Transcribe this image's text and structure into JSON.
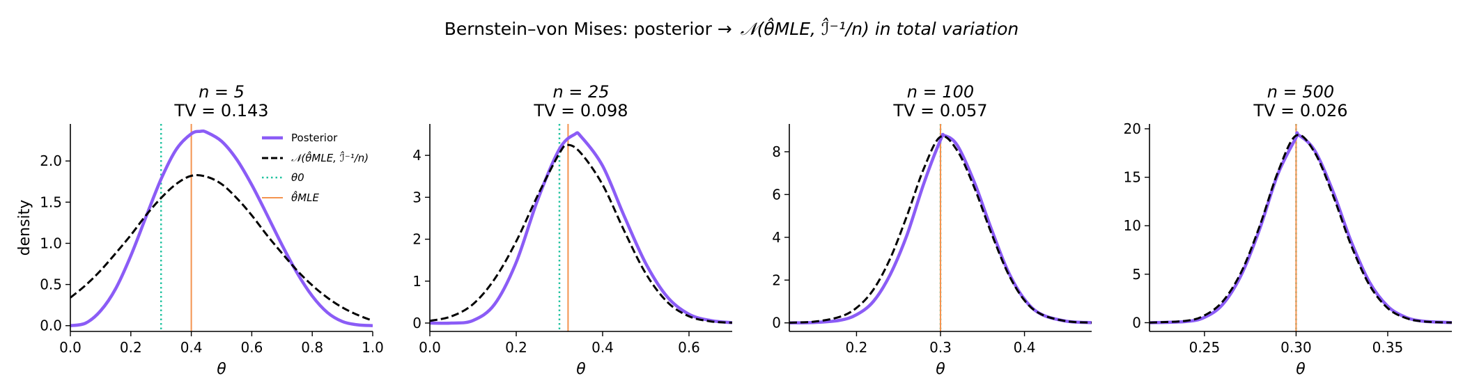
{
  "figure": {
    "suptitle_text": "Bernstein–von Mises: posterior →",
    "suptitle_math": "𝒩(θ̂MLE, ℐ̂⁻¹/n) in total variation"
  },
  "colors": {
    "posterior": "#8b5cf6",
    "normal": "#000000",
    "theta0": "#22c3a0",
    "mle": "#f4934f"
  },
  "legend": {
    "placement": "upper-right (first panel)",
    "entries": [
      "Posterior",
      "𝒩(θ̂MLE, ℐ̂⁻¹/n)",
      "θ0",
      "θ̂MLE"
    ]
  },
  "chart_data": [
    {
      "type": "line",
      "title_n": "n = 5",
      "title_tv": "TV = 0.143",
      "xlabel": "θ",
      "ylabel": "density",
      "xlim": [
        0.0,
        1.0
      ],
      "ylim": [
        -0.07,
        2.45
      ],
      "xticks": [
        0.0,
        0.2,
        0.4,
        0.6,
        0.8,
        1.0
      ],
      "xtick_labels": [
        "0.0",
        "0.2",
        "0.4",
        "0.6",
        "0.8",
        "1.0"
      ],
      "yticks": [
        0.0,
        0.5,
        1.0,
        1.5,
        2.0
      ],
      "ytick_labels": [
        "0.0",
        "0.5",
        "1.0",
        "1.5",
        "2.0"
      ],
      "theta0": 0.3,
      "theta_mle": 0.4,
      "series": [
        {
          "name": "Posterior",
          "x": [
            0.0,
            0.05,
            0.1,
            0.15,
            0.2,
            0.25,
            0.3,
            0.35,
            0.4,
            0.43,
            0.45,
            0.5,
            0.55,
            0.6,
            0.65,
            0.7,
            0.75,
            0.8,
            0.85,
            0.9,
            0.95,
            1.0
          ],
          "y": [
            0.0,
            0.03,
            0.18,
            0.45,
            0.85,
            1.32,
            1.78,
            2.14,
            2.33,
            2.36,
            2.35,
            2.24,
            2.02,
            1.71,
            1.35,
            0.98,
            0.64,
            0.36,
            0.16,
            0.05,
            0.01,
            0.0
          ]
        },
        {
          "name": "𝒩(θ̂MLE, ℐ̂⁻¹/n)",
          "x": [
            0.0,
            0.05,
            0.1,
            0.15,
            0.2,
            0.25,
            0.3,
            0.35,
            0.4,
            0.45,
            0.5,
            0.55,
            0.6,
            0.65,
            0.7,
            0.75,
            0.8,
            0.85,
            0.9,
            0.95,
            1.0
          ],
          "y": [
            0.34,
            0.49,
            0.67,
            0.88,
            1.1,
            1.34,
            1.55,
            1.72,
            1.82,
            1.81,
            1.72,
            1.55,
            1.34,
            1.1,
            0.88,
            0.67,
            0.49,
            0.34,
            0.22,
            0.13,
            0.06
          ]
        }
      ]
    },
    {
      "type": "line",
      "title_n": "n = 25",
      "title_tv": "TV = 0.098",
      "xlabel": "θ",
      "xlim": [
        0.0,
        0.7
      ],
      "ylim": [
        -0.2,
        4.75
      ],
      "xticks": [
        0.0,
        0.2,
        0.4,
        0.6
      ],
      "xtick_labels": [
        "0.0",
        "0.2",
        "0.4",
        "0.6"
      ],
      "yticks": [
        0,
        1,
        2,
        3,
        4
      ],
      "ytick_labels": [
        "0",
        "1",
        "2",
        "3",
        "4"
      ],
      "theta0": 0.3,
      "theta_mle": 0.32,
      "series": [
        {
          "name": "Posterior",
          "x": [
            0.0,
            0.05,
            0.1,
            0.15,
            0.2,
            0.25,
            0.3,
            0.335,
            0.35,
            0.4,
            0.45,
            0.5,
            0.55,
            0.6,
            0.65,
            0.7
          ],
          "y": [
            0.0,
            0.0,
            0.06,
            0.45,
            1.45,
            2.95,
            4.15,
            4.5,
            4.45,
            3.75,
            2.55,
            1.42,
            0.62,
            0.21,
            0.06,
            0.01
          ]
        },
        {
          "name": "𝒩(θ̂MLE, ℐ̂⁻¹/n)",
          "x": [
            0.0,
            0.05,
            0.1,
            0.15,
            0.2,
            0.25,
            0.3,
            0.32,
            0.35,
            0.4,
            0.45,
            0.5,
            0.55,
            0.6,
            0.65,
            0.7
          ],
          "y": [
            0.05,
            0.16,
            0.45,
            1.05,
            1.95,
            3.05,
            4.05,
            4.25,
            4.05,
            3.3,
            2.2,
            1.18,
            0.5,
            0.16,
            0.04,
            0.01
          ]
        }
      ]
    },
    {
      "type": "line",
      "title_n": "n = 100",
      "title_tv": "TV = 0.057",
      "xlabel": "θ",
      "xlim": [
        0.12,
        0.48
      ],
      "ylim": [
        -0.4,
        9.3
      ],
      "xticks": [
        0.2,
        0.3,
        0.4
      ],
      "xtick_labels": [
        "0.2",
        "0.3",
        "0.4"
      ],
      "yticks": [
        0,
        2,
        4,
        6,
        8
      ],
      "ytick_labels": [
        "0",
        "2",
        "4",
        "6",
        "8"
      ],
      "theta0": 0.3,
      "theta_mle": 0.3,
      "series": [
        {
          "name": "Posterior",
          "x": [
            0.12,
            0.15,
            0.18,
            0.2,
            0.22,
            0.24,
            0.26,
            0.28,
            0.3,
            0.305,
            0.32,
            0.34,
            0.36,
            0.38,
            0.4,
            0.42,
            0.45,
            0.48
          ],
          "y": [
            0.0,
            0.02,
            0.12,
            0.38,
            1.0,
            2.25,
            4.1,
            6.5,
            8.55,
            8.75,
            8.3,
            6.6,
            4.45,
            2.45,
            1.1,
            0.4,
            0.08,
            0.01
          ]
        },
        {
          "name": "𝒩(θ̂MLE, ℐ̂⁻¹/n)",
          "x": [
            0.12,
            0.15,
            0.18,
            0.2,
            0.22,
            0.24,
            0.26,
            0.28,
            0.3,
            0.32,
            0.34,
            0.36,
            0.38,
            0.4,
            0.42,
            0.45,
            0.48
          ],
          "y": [
            0.01,
            0.06,
            0.28,
            0.7,
            1.55,
            3.0,
            5.0,
            7.2,
            8.7,
            8.05,
            6.35,
            4.25,
            2.35,
            1.05,
            0.4,
            0.08,
            0.01
          ]
        }
      ]
    },
    {
      "type": "line",
      "title_n": "n = 500",
      "title_tv": "TV = 0.026",
      "xlabel": "θ",
      "xlim": [
        0.22,
        0.385
      ],
      "ylim": [
        -0.9,
        20.5
      ],
      "xticks": [
        0.25,
        0.3,
        0.35
      ],
      "xtick_labels": [
        "0.25",
        "0.30",
        "0.35"
      ],
      "yticks": [
        0,
        5,
        10,
        15,
        20
      ],
      "ytick_labels": [
        "0",
        "5",
        "10",
        "15",
        "20"
      ],
      "theta0": 0.3,
      "theta_mle": 0.3,
      "series": [
        {
          "name": "Posterior",
          "x": [
            0.22,
            0.24,
            0.25,
            0.26,
            0.27,
            0.28,
            0.29,
            0.3,
            0.301,
            0.31,
            0.32,
            0.33,
            0.34,
            0.35,
            0.36,
            0.37,
            0.385
          ],
          "y": [
            0.0,
            0.12,
            0.55,
            1.9,
            4.9,
            9.6,
            15.3,
            19.1,
            19.4,
            17.8,
            13.6,
            8.4,
            4.2,
            1.7,
            0.55,
            0.14,
            0.02
          ]
        },
        {
          "name": "𝒩(θ̂MLE, ℐ̂⁻¹/n)",
          "x": [
            0.22,
            0.24,
            0.25,
            0.26,
            0.27,
            0.28,
            0.29,
            0.3,
            0.31,
            0.32,
            0.33,
            0.34,
            0.35,
            0.36,
            0.37,
            0.385
          ],
          "y": [
            0.01,
            0.2,
            0.75,
            2.2,
            5.2,
            9.9,
            15.5,
            19.3,
            17.6,
            13.2,
            8.0,
            3.9,
            1.5,
            0.47,
            0.12,
            0.01
          ]
        }
      ]
    }
  ]
}
